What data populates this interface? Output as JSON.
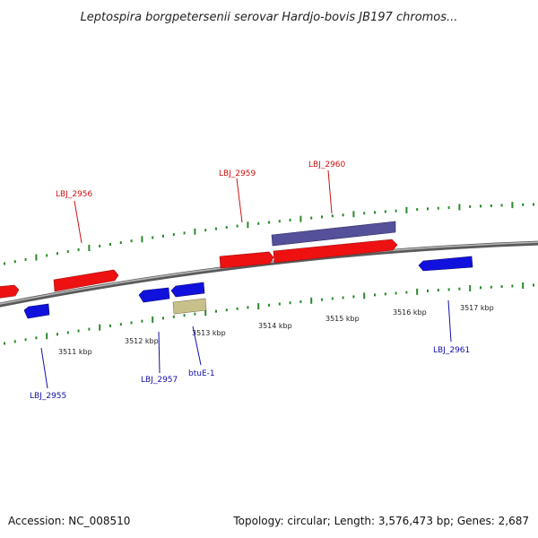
{
  "title": "Leptospira borgpetersenii serovar Hardjo-bovis JB197 chromos...",
  "footer": {
    "accession": "Accession: NC_008510",
    "summary": "Topology: circular; Length: 3,576,473 bp; Genes: 2,687"
  },
  "colors": {
    "forward_gene": "#ee1111",
    "reverse_gene": "#1111dd",
    "operon": "#55509a",
    "misc_feature": "#c8c08a",
    "tick": "#2a8a2a",
    "forward_label": "#cc1111",
    "reverse_label": "#1111aa"
  },
  "scale": {
    "labels": [
      "3511 kbp",
      "3512 kbp",
      "3513 kbp",
      "3514 kbp",
      "3515 kbp",
      "3516 kbp",
      "3517 kbp"
    ]
  },
  "genes": {
    "forward": [
      "LBJ_2956",
      "LBJ_2959",
      "LBJ_2960"
    ],
    "reverse": [
      "LBJ_2955",
      "LBJ_2957",
      "btuE-1",
      "LBJ_2961"
    ]
  }
}
